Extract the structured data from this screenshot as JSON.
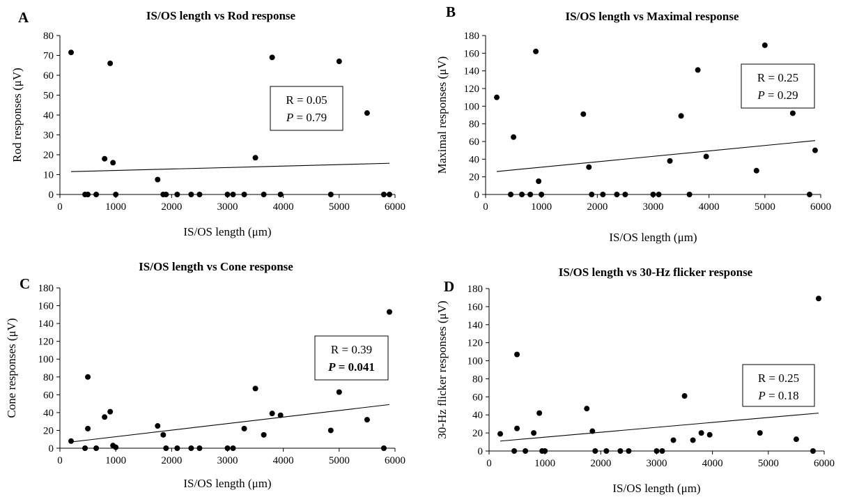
{
  "chart_data": [
    {
      "panel": "A",
      "type": "scatter",
      "title_prefix": "IS/OS length vs",
      "title_main": "Rod response",
      "xlabel": "IS/OS length (μm)",
      "ylabel": "Rod responses (μV)",
      "xlim": [
        0,
        6000
      ],
      "ylim": [
        0,
        80
      ],
      "xticks": [
        0,
        1000,
        2000,
        3000,
        4000,
        5000,
        6000
      ],
      "yticks": [
        0,
        10,
        20,
        30,
        40,
        50,
        60,
        70,
        80
      ],
      "points": [
        [
          200,
          71.5
        ],
        [
          450,
          0
        ],
        [
          500,
          0
        ],
        [
          650,
          0
        ],
        [
          800,
          18
        ],
        [
          900,
          66
        ],
        [
          950,
          16
        ],
        [
          1000,
          0
        ],
        [
          1750,
          7.5
        ],
        [
          1850,
          0
        ],
        [
          1900,
          0
        ],
        [
          2100,
          0
        ],
        [
          2350,
          0
        ],
        [
          2500,
          0
        ],
        [
          3000,
          0
        ],
        [
          3100,
          0
        ],
        [
          3300,
          0
        ],
        [
          3500,
          18.5
        ],
        [
          3650,
          0
        ],
        [
          3800,
          69
        ],
        [
          3950,
          0
        ],
        [
          4850,
          0
        ],
        [
          5000,
          67
        ],
        [
          5500,
          41
        ],
        [
          5800,
          0
        ],
        [
          5900,
          0
        ]
      ],
      "fit": {
        "x": [
          200,
          5900
        ],
        "y": [
          11.5,
          15.7
        ]
      },
      "stats": {
        "r_label": "R = 0.05",
        "p_italic": "P",
        "p_value": " = 0.79",
        "p_bold": false
      },
      "legend_position": "center-right"
    },
    {
      "panel": "B",
      "type": "scatter",
      "title_prefix": "IS/OS length vs",
      "title_main": "Maximal response",
      "xlabel": "IS/OS length (μm)",
      "ylabel": "Maximal responses (μV)",
      "xlim": [
        0,
        6000
      ],
      "ylim": [
        0,
        180
      ],
      "xticks": [
        0,
        1000,
        2000,
        3000,
        4000,
        5000,
        6000
      ],
      "yticks": [
        0,
        20,
        40,
        60,
        80,
        100,
        120,
        140,
        160,
        180
      ],
      "points": [
        [
          200,
          110
        ],
        [
          450,
          0
        ],
        [
          500,
          65
        ],
        [
          650,
          0
        ],
        [
          800,
          0
        ],
        [
          900,
          162
        ],
        [
          950,
          15
        ],
        [
          1000,
          0
        ],
        [
          1750,
          91
        ],
        [
          1850,
          31
        ],
        [
          1900,
          0
        ],
        [
          2100,
          0
        ],
        [
          2350,
          0
        ],
        [
          2500,
          0
        ],
        [
          3000,
          0
        ],
        [
          3100,
          0
        ],
        [
          3300,
          38
        ],
        [
          3500,
          89
        ],
        [
          3650,
          0
        ],
        [
          3800,
          141
        ],
        [
          3950,
          43
        ],
        [
          4850,
          27
        ],
        [
          5000,
          169
        ],
        [
          5500,
          92
        ],
        [
          5800,
          0
        ],
        [
          5900,
          50
        ]
      ],
      "fit": {
        "x": [
          200,
          5900
        ],
        "y": [
          26,
          61
        ]
      },
      "stats": {
        "r_label": "R = 0.25",
        "p_italic": "P",
        "p_value": " = 0.29",
        "p_bold": false
      },
      "legend_position": "top-right"
    },
    {
      "panel": "C",
      "type": "scatter",
      "title_prefix": "IS/OS length vs",
      "title_main": "Cone response",
      "xlabel": "IS/OS length (μm)",
      "ylabel": "Cone responses (μV)",
      "xlim": [
        0,
        6000
      ],
      "ylim": [
        0,
        180
      ],
      "xticks": [
        0,
        1000,
        2000,
        3000,
        4000,
        5000,
        6000
      ],
      "yticks": [
        0,
        20,
        40,
        60,
        80,
        100,
        120,
        140,
        160,
        180
      ],
      "points": [
        [
          200,
          8
        ],
        [
          450,
          0
        ],
        [
          500,
          22
        ],
        [
          500,
          80
        ],
        [
          650,
          0
        ],
        [
          800,
          35
        ],
        [
          900,
          41
        ],
        [
          950,
          3
        ],
        [
          1000,
          1
        ],
        [
          1750,
          25
        ],
        [
          1850,
          15
        ],
        [
          1900,
          0
        ],
        [
          2100,
          0
        ],
        [
          2350,
          0
        ],
        [
          2500,
          0
        ],
        [
          3000,
          0
        ],
        [
          3100,
          0
        ],
        [
          3300,
          22
        ],
        [
          3500,
          67
        ],
        [
          3650,
          15
        ],
        [
          3800,
          39
        ],
        [
          3950,
          37
        ],
        [
          4850,
          20
        ],
        [
          5000,
          63
        ],
        [
          5500,
          32
        ],
        [
          5800,
          0
        ],
        [
          5900,
          153
        ]
      ],
      "fit": {
        "x": [
          200,
          5900
        ],
        "y": [
          7,
          49
        ]
      },
      "stats": {
        "r_label": "R = 0.39",
        "p_italic": "P",
        "p_value": " = 0.041",
        "p_bold": true
      },
      "legend_position": "center-right"
    },
    {
      "panel": "D",
      "type": "scatter",
      "title_prefix": "IS/OS length vs",
      "title_main": "30-Hz flicker response",
      "xlabel": "IS/OS length (μm)",
      "ylabel": "30-Hz flicker responses (μV)",
      "xlim": [
        0,
        6000
      ],
      "ylim": [
        0,
        180
      ],
      "xticks": [
        0,
        1000,
        2000,
        3000,
        4000,
        5000,
        6000
      ],
      "yticks": [
        0,
        20,
        40,
        60,
        80,
        100,
        120,
        140,
        160,
        180
      ],
      "points": [
        [
          200,
          19
        ],
        [
          450,
          0
        ],
        [
          500,
          25
        ],
        [
          500,
          107
        ],
        [
          650,
          0
        ],
        [
          800,
          20
        ],
        [
          900,
          42
        ],
        [
          950,
          0
        ],
        [
          1000,
          0
        ],
        [
          1750,
          47
        ],
        [
          1850,
          22
        ],
        [
          1900,
          0
        ],
        [
          2100,
          0
        ],
        [
          2350,
          0
        ],
        [
          2500,
          0
        ],
        [
          3000,
          0
        ],
        [
          3100,
          0
        ],
        [
          3300,
          12
        ],
        [
          3500,
          61
        ],
        [
          3650,
          12
        ],
        [
          3800,
          20
        ],
        [
          3950,
          18
        ],
        [
          4850,
          20
        ],
        [
          5000,
          58
        ],
        [
          5500,
          13
        ],
        [
          5800,
          0
        ],
        [
          5900,
          169
        ]
      ],
      "fit": {
        "x": [
          200,
          5900
        ],
        "y": [
          11,
          42
        ]
      },
      "stats": {
        "r_label": "R = 0.25",
        "p_italic": "P",
        "p_value": " = 0.18",
        "p_bold": false
      },
      "legend_position": "center-right"
    }
  ]
}
